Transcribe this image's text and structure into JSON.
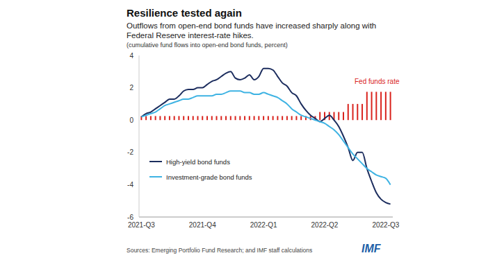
{
  "chart_data": {
    "type": "line",
    "title": "Resilience tested again",
    "subtitle": "Outflows from open-end bond funds have increased sharply along with Federal Reserve interest-rate hikes.",
    "y_label": "(cumulative fund flows into open-end bond funds, percent)",
    "source": "Sources: Emerging Portfolio Fund Research; and IMF staff calculations",
    "credit": "IMF",
    "categories": [
      "2021-Q3",
      null,
      null,
      null,
      null,
      null,
      null,
      null,
      null,
      null,
      null,
      null,
      null,
      "2021-Q4",
      null,
      null,
      null,
      null,
      null,
      null,
      null,
      null,
      null,
      null,
      null,
      null,
      "2022-Q1",
      null,
      null,
      null,
      null,
      null,
      null,
      null,
      null,
      null,
      null,
      null,
      null,
      "2022-Q2",
      null,
      null,
      null,
      null,
      null,
      null,
      null,
      null,
      null,
      null,
      null,
      null,
      "2022-Q3",
      null
    ],
    "series": [
      {
        "name": "Fed funds rate",
        "type": "bar",
        "color": "#d9231d",
        "values": [
          0.25,
          0.25,
          0.25,
          0.25,
          0.25,
          0.25,
          0.25,
          0.25,
          0.25,
          0.25,
          0.25,
          0.25,
          0.25,
          0.25,
          0.25,
          0.25,
          0.25,
          0.25,
          0.25,
          0.25,
          0.25,
          0.25,
          0.25,
          0.25,
          0.25,
          0.25,
          0.25,
          0.25,
          0.25,
          0.25,
          0.25,
          0.25,
          0.25,
          0.25,
          0.25,
          0.25,
          0.25,
          0.25,
          0.5,
          0.5,
          0.5,
          0.5,
          0.5,
          0.5,
          1.0,
          1.0,
          1.0,
          1.0,
          1.75,
          1.75,
          1.75,
          1.75,
          1.75,
          1.75
        ]
      },
      {
        "name": "High-yield bond funds",
        "type": "line",
        "color": "#1c2d5e",
        "values": [
          0.2,
          0.4,
          0.5,
          0.7,
          0.9,
          1.1,
          1.3,
          1.3,
          1.5,
          1.8,
          1.9,
          1.9,
          2.0,
          2.0,
          2.2,
          2.4,
          2.5,
          2.7,
          2.9,
          3.0,
          2.6,
          2.5,
          2.6,
          2.8,
          2.5,
          2.7,
          3.2,
          3.2,
          3.1,
          2.7,
          2.3,
          2.1,
          1.7,
          1.5,
          1.0,
          0.6,
          0.3,
          0.1,
          -0.1,
          0.1,
          0.3,
          0.0,
          -0.4,
          -1.0,
          -1.7,
          -2.5,
          -2.0,
          -2.0,
          -3.0,
          -3.8,
          -4.5,
          -4.9,
          -5.1,
          -5.2
        ]
      },
      {
        "name": "Investment-grade bond funds",
        "type": "line",
        "color": "#3eb3e3",
        "values": [
          0.2,
          0.3,
          0.4,
          0.5,
          0.7,
          0.9,
          1.0,
          1.1,
          1.2,
          1.3,
          1.3,
          1.4,
          1.5,
          1.5,
          1.5,
          1.5,
          1.6,
          1.6,
          1.7,
          1.8,
          1.8,
          1.8,
          1.7,
          1.7,
          1.6,
          1.6,
          1.7,
          1.6,
          1.5,
          1.4,
          1.2,
          1.0,
          0.7,
          0.5,
          0.3,
          0.2,
          0.1,
          0.0,
          -0.1,
          -0.2,
          -0.4,
          -0.6,
          -0.9,
          -1.3,
          -1.7,
          -2.1,
          -2.4,
          -2.7,
          -3.0,
          -3.2,
          -3.4,
          -3.5,
          -3.6,
          -4.0
        ]
      }
    ],
    "ylim": [
      -6,
      4
    ],
    "yticks": [
      -6,
      -4,
      -2,
      0,
      2,
      4
    ],
    "grid": false,
    "legend": "left"
  }
}
